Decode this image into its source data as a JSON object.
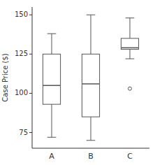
{
  "chart_data": {
    "type": "box",
    "ylabel": "Case Price ($)",
    "categories": [
      "A",
      "B",
      "C"
    ],
    "whislo": [
      72,
      70,
      122
    ],
    "q1": [
      93,
      85,
      128
    ],
    "med": [
      105,
      106,
      129
    ],
    "q3": [
      125,
      125,
      135
    ],
    "whishi": [
      138,
      150,
      148
    ],
    "fliers": [
      [],
      [],
      [
        103
      ]
    ],
    "ylim": [
      65,
      155
    ],
    "yticks": [
      75,
      100,
      125,
      150
    ],
    "grid": false,
    "color": "#555555"
  }
}
